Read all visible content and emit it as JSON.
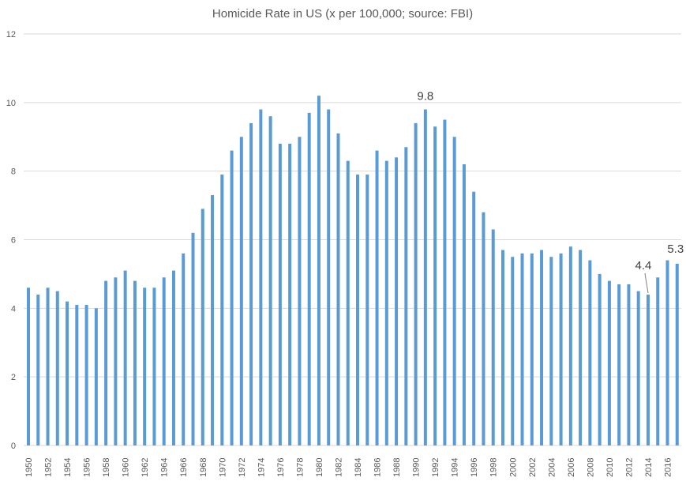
{
  "chart_data": {
    "type": "bar",
    "title": "Homicide Rate in US (x per 100,000; source: FBI)",
    "xlabel": "",
    "ylabel": "",
    "ylim": [
      0,
      12
    ],
    "yticks": [
      0,
      2,
      4,
      6,
      8,
      10,
      12
    ],
    "grid": true,
    "legend": "none",
    "bar_color": "#5b9bd5",
    "categories": [
      "1950",
      "1951",
      "1952",
      "1953",
      "1954",
      "1955",
      "1956",
      "1957",
      "1958",
      "1959",
      "1960",
      "1961",
      "1962",
      "1963",
      "1964",
      "1965",
      "1966",
      "1967",
      "1968",
      "1969",
      "1970",
      "1971",
      "1972",
      "1973",
      "1974",
      "1975",
      "1976",
      "1977",
      "1978",
      "1979",
      "1980",
      "1981",
      "1982",
      "1983",
      "1984",
      "1985",
      "1986",
      "1987",
      "1988",
      "1989",
      "1990",
      "1991",
      "1992",
      "1993",
      "1994",
      "1995",
      "1996",
      "1997",
      "1998",
      "1999",
      "2000",
      "2001",
      "2002",
      "2003",
      "2004",
      "2005",
      "2006",
      "2007",
      "2008",
      "2009",
      "2010",
      "2011",
      "2012",
      "2013",
      "2014",
      "2015",
      "2016",
      "2017"
    ],
    "tick_labels": [
      "1950",
      "1952",
      "1954",
      "1956",
      "1958",
      "1960",
      "1962",
      "1964",
      "1966",
      "1968",
      "1970",
      "1972",
      "1974",
      "1976",
      "1978",
      "1980",
      "1982",
      "1984",
      "1986",
      "1988",
      "1990",
      "1992",
      "1994",
      "1996",
      "1998",
      "2000",
      "2002",
      "2004",
      "2006",
      "2008",
      "2010",
      "2012",
      "2014",
      "2016"
    ],
    "values": [
      4.6,
      4.4,
      4.6,
      4.5,
      4.2,
      4.1,
      4.1,
      4.0,
      4.8,
      4.9,
      5.1,
      4.8,
      4.6,
      4.6,
      4.9,
      5.1,
      5.6,
      6.2,
      6.9,
      7.3,
      7.9,
      8.6,
      9.0,
      9.4,
      9.8,
      9.6,
      8.8,
      8.8,
      9.0,
      9.7,
      10.2,
      9.8,
      9.1,
      8.3,
      7.9,
      7.9,
      8.6,
      8.3,
      8.4,
      8.7,
      9.4,
      9.8,
      9.3,
      9.5,
      9.0,
      8.2,
      7.4,
      6.8,
      6.3,
      5.7,
      5.5,
      5.6,
      5.6,
      5.7,
      5.5,
      5.6,
      5.8,
      5.7,
      5.4,
      5.0,
      4.8,
      4.7,
      4.7,
      4.5,
      4.4,
      4.9,
      5.4,
      5.3
    ],
    "annotations": [
      {
        "category": "1991",
        "label": "9.8"
      },
      {
        "category": "2014",
        "label": "4.4"
      },
      {
        "category": "2017",
        "label": "5.3"
      }
    ]
  }
}
